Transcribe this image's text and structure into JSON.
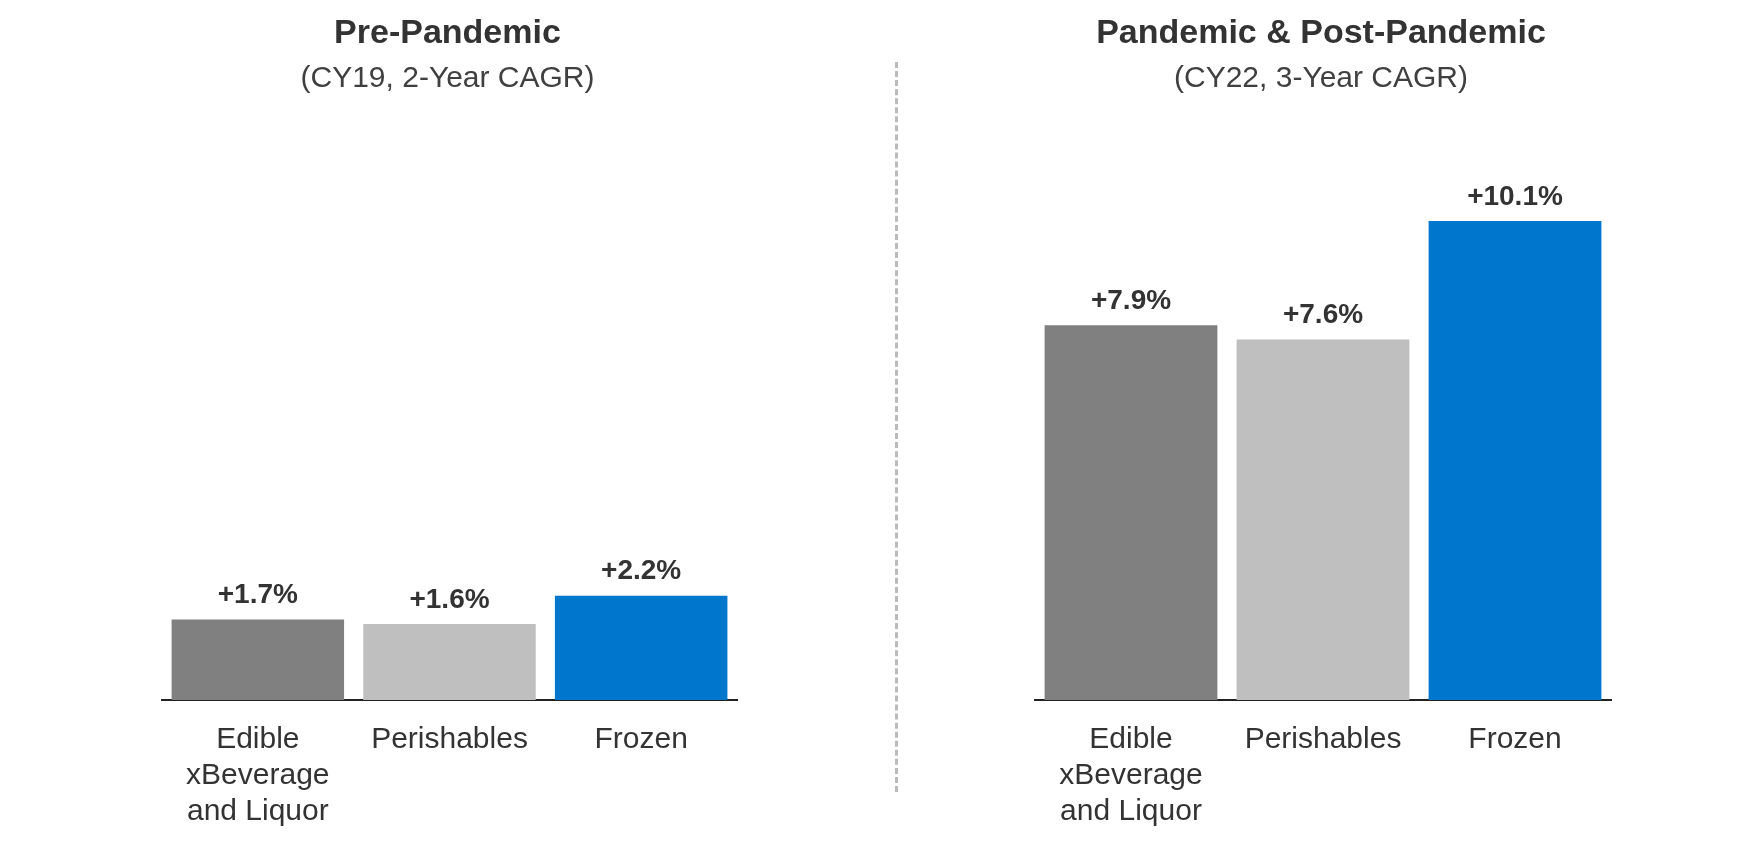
{
  "chart_data": [
    {
      "type": "bar",
      "title": "Pre-Pandemic",
      "subtitle": "(CY19, 2-Year CAGR)",
      "categories": [
        "Edible xBeverage and Liquor",
        "Perishables",
        "Frozen"
      ],
      "values": [
        1.7,
        1.6,
        2.2
      ],
      "colors": [
        "#808080",
        "#bfbfbf",
        "#0077cc"
      ],
      "value_labels": [
        "+1.7%",
        "+1.6%",
        "+2.2%"
      ]
    },
    {
      "type": "bar",
      "title": "Pandemic & Post-Pandemic",
      "subtitle": "(CY22, 3-Year CAGR)",
      "categories": [
        "Edible xBeverage and Liquor",
        "Perishables",
        "Frozen"
      ],
      "values": [
        7.9,
        7.6,
        10.1
      ],
      "colors": [
        "#808080",
        "#bfbfbf",
        "#0077cc"
      ],
      "value_labels": [
        "+7.9%",
        "+7.6%",
        "+10.1%"
      ]
    }
  ]
}
